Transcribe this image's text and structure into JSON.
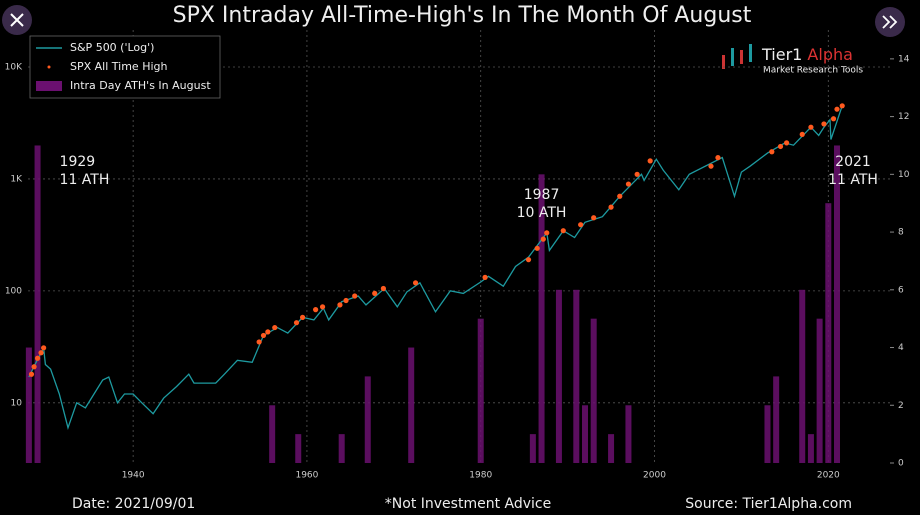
{
  "chart_data": {
    "type": "line",
    "title": "SPX Intraday All-Time-High's In The Month Of August",
    "log_y": true,
    "grid": true,
    "legend": "upper left",
    "xlim": [
      1927.9,
      2027.1
    ],
    "xticks": [
      1940,
      1960,
      1980,
      2000,
      2020
    ],
    "ylim": [
      2.9,
      21400
    ],
    "yticks": [
      10,
      100,
      {
        "value": 1000,
        "label": "1K"
      },
      {
        "value": 10000,
        "label": "10K"
      }
    ],
    "y2lim": [
      0,
      15
    ],
    "y2ticks": [
      0,
      2,
      4,
      6,
      8,
      10,
      12,
      14
    ],
    "series": [
      {
        "name": "S&P 500 ('Log')",
        "type": "line",
        "color": "#1d9aa0",
        "x": [
          1928,
          1928.7,
          1929.7,
          1929.9,
          1930.5,
          1931.5,
          1932.5,
          1933.5,
          1934.5,
          1935.5,
          1936.5,
          1937.2,
          1938.2,
          1939,
          1940,
          1941,
          1942.3,
          1943.5,
          1945,
          1946.4,
          1947,
          1949.5,
          1950.5,
          1952,
          1953.7,
          1955,
          1956.6,
          1957.8,
          1959.5,
          1960.8,
          1961.9,
          1962.5,
          1964,
          1965.9,
          1966.8,
          1968.9,
          1970.4,
          1971.5,
          1973,
          1974.8,
          1976.5,
          1978,
          1980,
          1980.9,
          1982.6,
          1984,
          1985.5,
          1987.6,
          1987.9,
          1989.5,
          1990.8,
          1992,
          1994,
          1996,
          1998.5,
          1998.8,
          2000.2,
          2001,
          2002.8,
          2004,
          2007.8,
          2009.2,
          2010,
          2011,
          2013,
          2015,
          2016,
          2018,
          2018.9,
          2019.5,
          2020.2,
          2020.3,
          2021.6
        ],
        "values": [
          17,
          22,
          31,
          22,
          20,
          12,
          6,
          10,
          9,
          12,
          16,
          17,
          10,
          12,
          12,
          10,
          8,
          11,
          14,
          18,
          15,
          15,
          18,
          24,
          23,
          40,
          47,
          42,
          58,
          55,
          70,
          55,
          80,
          90,
          75,
          105,
          72,
          98,
          118,
          65,
          100,
          95,
          120,
          135,
          110,
          165,
          200,
          330,
          230,
          345,
          300,
          410,
          460,
          700,
          1100,
          970,
          1500,
          1200,
          800,
          1100,
          1550,
          700,
          1150,
          1300,
          1700,
          2100,
          2000,
          2900,
          2450,
          2900,
          3380,
          2250,
          4500
        ]
      },
      {
        "name": "SPX All Time High",
        "type": "scatter",
        "color": "#ff5a1f",
        "x": [
          1928.3,
          1928.6,
          1929,
          1929.4,
          1929.7,
          1954.5,
          1955,
          1955.5,
          1956.3,
          1958.8,
          1959.5,
          1961,
          1961.8,
          1963.8,
          1964.5,
          1965.5,
          1967.8,
          1968.8,
          1972.5,
          1980.5,
          1985.5,
          1986.5,
          1987.2,
          1987.6,
          1989.5,
          1991.5,
          1993,
          1995,
          1996,
          1997,
          1998,
          1999.5,
          2006.5,
          2007.3,
          2013.5,
          2014.5,
          2015.2,
          2017,
          2018,
          2019.5,
          2020.6,
          2021,
          2021.6
        ],
        "values": [
          18,
          21,
          25,
          28,
          31,
          35,
          40,
          43,
          47,
          52,
          58,
          68,
          72,
          75,
          82,
          90,
          95,
          105,
          118,
          132,
          190,
          240,
          290,
          330,
          345,
          390,
          450,
          560,
          700,
          900,
          1100,
          1450,
          1300,
          1550,
          1750,
          1950,
          2100,
          2500,
          2900,
          3100,
          3450,
          4200,
          4500
        ]
      },
      {
        "name": "Intra Day ATH's In August",
        "type": "bar",
        "axis": "y2",
        "color": "#6b1070",
        "x": [
          1928,
          1929,
          1956,
          1959,
          1964,
          1967,
          1972,
          1980,
          1986,
          1987,
          1989,
          1991,
          1992,
          1993,
          1995,
          1997,
          2013,
          2014,
          2017,
          2018,
          2019,
          2020,
          2021
        ],
        "values": [
          4,
          11,
          2,
          1,
          1,
          3,
          4,
          5,
          1,
          10,
          6,
          6,
          2,
          5,
          1,
          2,
          2,
          3,
          6,
          1,
          5,
          9,
          11
        ]
      }
    ],
    "annotations": [
      {
        "lines": [
          "1929",
          "11 ATH"
        ],
        "x": 1929
      },
      {
        "lines": [
          "1987",
          "10 ATH"
        ],
        "x": 1987
      },
      {
        "lines": [
          "2021",
          "11 ATH"
        ],
        "x": 2021
      }
    ]
  },
  "logo": {
    "name": "Tier1",
    "accent": "Alpha",
    "tagline": "Market Research Tools"
  },
  "footer": {
    "date": "Date: 2021/09/01",
    "note": "*Not Investment Advice",
    "source": "Source: Tier1Alpha.com"
  }
}
